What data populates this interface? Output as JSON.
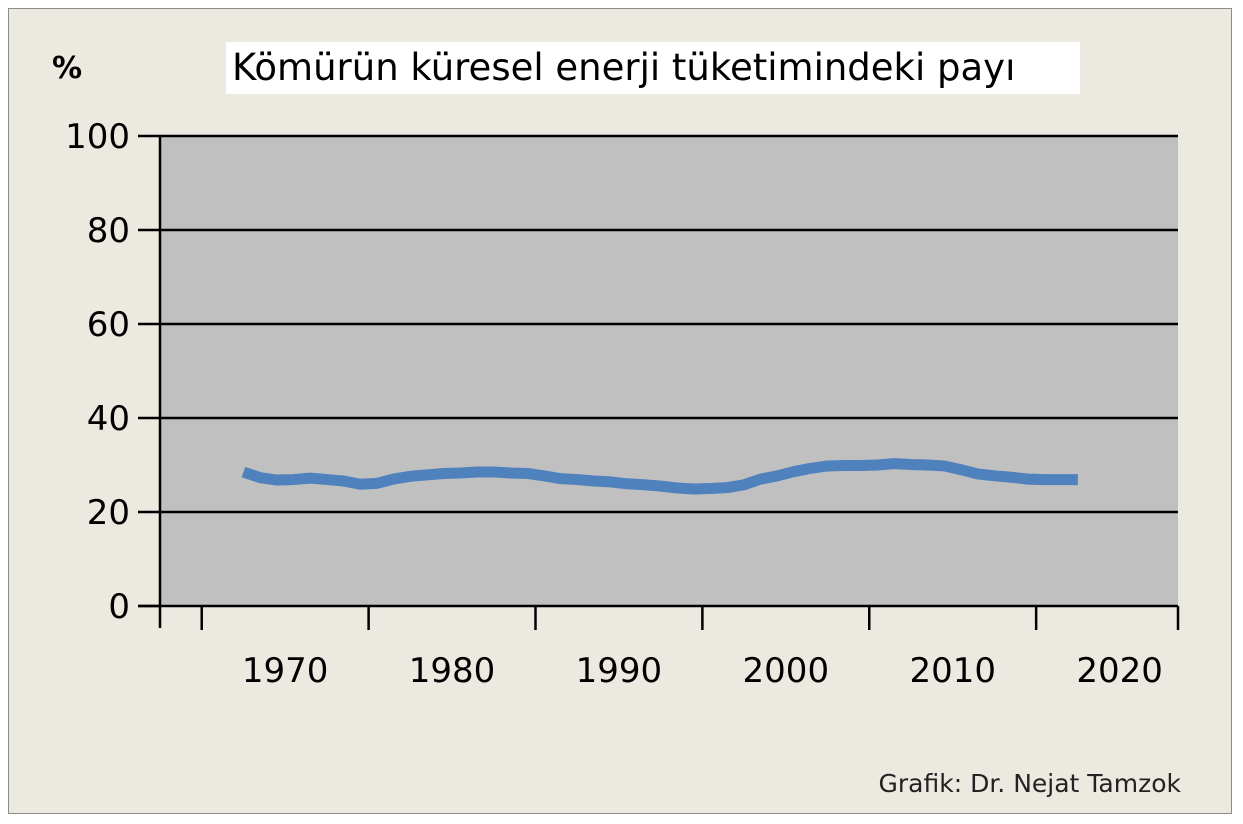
{
  "chart_data": {
    "type": "line",
    "title": "Kömürün küresel enerji tüketimindeki payı",
    "ylabel": "%",
    "xlabel": "",
    "credit": "Grafik: Dr. Nejat Tamzok",
    "xlim": [
      1965,
      2026
    ],
    "ylim": [
      0,
      100
    ],
    "x_ticks": [
      1970,
      1980,
      1990,
      2000,
      2010,
      2020
    ],
    "y_ticks": [
      0,
      20,
      40,
      60,
      80,
      100
    ],
    "grid": true,
    "plot_background": "#c0c0c0",
    "figure_background": "#ece9e0",
    "series": [
      {
        "color": "#4f81bd",
        "x": [
          1970,
          1971,
          1972,
          1973,
          1974,
          1975,
          1976,
          1977,
          1978,
          1979,
          1980,
          1981,
          1982,
          1983,
          1984,
          1985,
          1986,
          1987,
          1988,
          1989,
          1990,
          1991,
          1992,
          1993,
          1994,
          1995,
          1996,
          1997,
          1998,
          1999,
          2000,
          2001,
          2002,
          2003,
          2004,
          2005,
          2006,
          2007,
          2008,
          2009,
          2010,
          2011,
          2012,
          2013,
          2014,
          2015,
          2016,
          2017,
          2018,
          2019,
          2020
        ],
        "y": [
          28.5,
          27.3,
          26.8,
          26.9,
          27.2,
          26.9,
          26.6,
          25.9,
          26.1,
          27.0,
          27.6,
          27.9,
          28.2,
          28.3,
          28.5,
          28.5,
          28.3,
          28.2,
          27.7,
          27.1,
          26.9,
          26.6,
          26.4,
          26.0,
          25.8,
          25.5,
          25.1,
          24.9,
          25.0,
          25.2,
          25.8,
          27.0,
          27.7,
          28.6,
          29.3,
          29.8,
          29.9,
          29.9,
          30.0,
          30.3,
          30.1,
          30.0,
          29.8,
          29.0,
          28.1,
          27.7,
          27.4,
          27.0,
          26.9,
          26.9,
          26.9
        ]
      }
    ]
  }
}
